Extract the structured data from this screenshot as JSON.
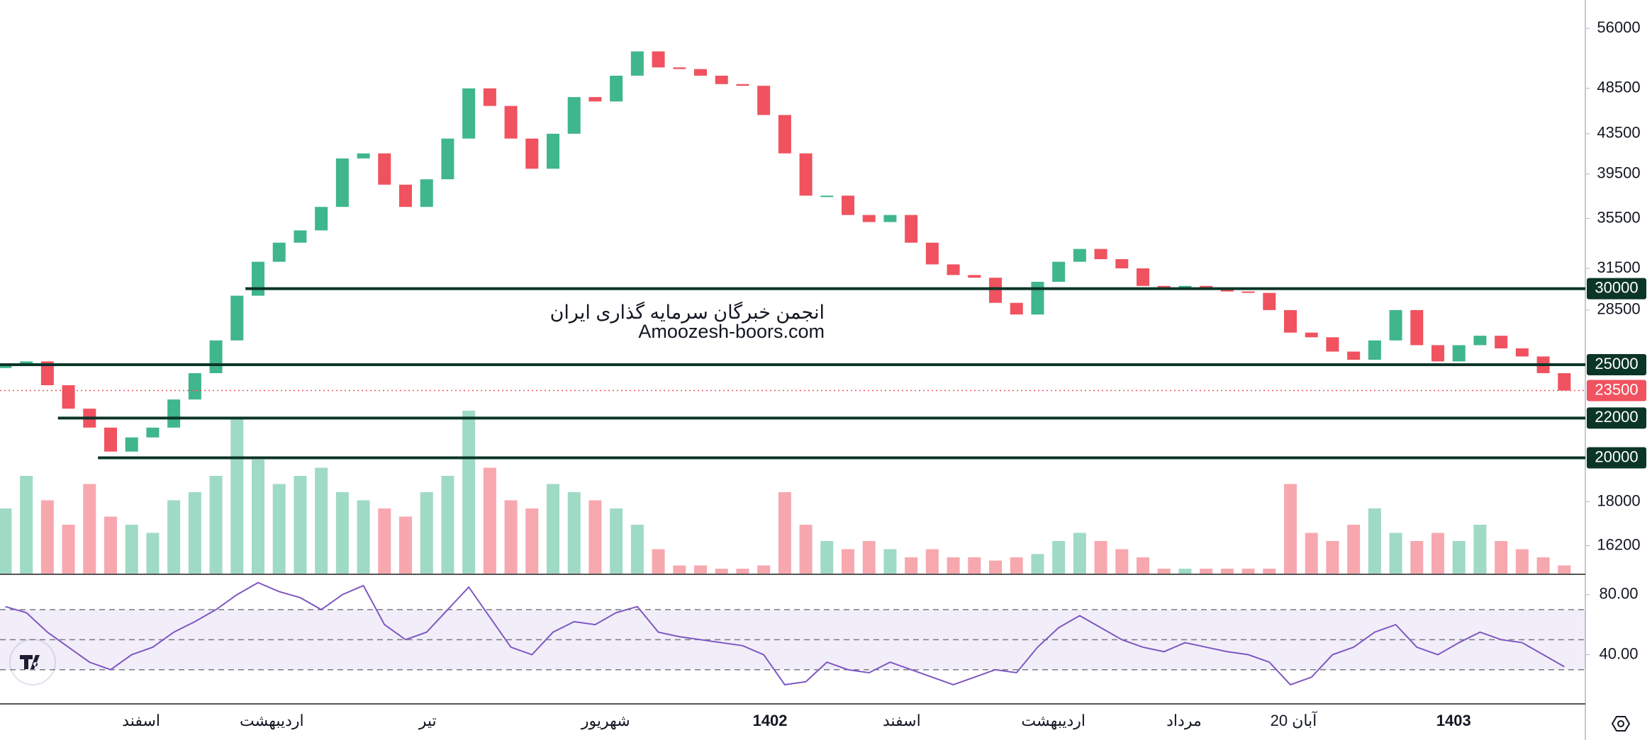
{
  "chart_data": {
    "type": "candlestick",
    "log": true,
    "ylim": [
      15150,
      59950
    ],
    "yticks": [
      56000,
      48500,
      43500,
      39500,
      35500,
      31500,
      28500,
      18000,
      16200
    ],
    "xlim": [
      -0.25,
      75.0
    ],
    "xticks": [
      {
        "value": 6.45,
        "label": "اسفند"
      },
      {
        "value": 12.65,
        "label": "اردیبهشت"
      },
      {
        "value": 20.05,
        "label": "تیر"
      },
      {
        "value": 28.5,
        "label": "شهریور"
      },
      {
        "value": 36.3,
        "label": "1402",
        "bold": true
      },
      {
        "value": 42.55,
        "label": "اسفند"
      },
      {
        "value": 49.75,
        "label": "اردیبهشت"
      },
      {
        "value": 55.95,
        "label": "مرداد"
      },
      {
        "value": 61.15,
        "label": "20 آبان"
      },
      {
        "value": 68.75,
        "label": "1403",
        "bold": true
      }
    ],
    "up_color": "#3fb68b",
    "down_color": "#f0525f",
    "open": [
      24800,
      25000,
      25200,
      23800,
      22500,
      21500,
      20300,
      21000,
      21500,
      23000,
      24500,
      26500,
      29500,
      32000,
      33500,
      34500,
      36500,
      41000,
      41500,
      38500,
      36500,
      39000,
      43000,
      48500,
      46500,
      43000,
      40000,
      43500,
      47500,
      47000,
      50000,
      53000,
      51000,
      50800,
      50000,
      49000,
      48800,
      45500,
      41500,
      37500,
      37500,
      35800,
      35200,
      35800,
      33500,
      31800,
      31000,
      30800,
      29000,
      28200,
      30500,
      32000,
      33000,
      32200,
      31500,
      30200,
      30000,
      30200,
      30000,
      29800,
      29700,
      28500,
      27000,
      26700,
      25800,
      25300,
      26500,
      28500,
      26200,
      25200,
      26200,
      26800,
      26000,
      25500,
      24500
    ],
    "close": [
      25000,
      25200,
      23800,
      22500,
      21500,
      20300,
      21000,
      21500,
      23000,
      24500,
      26500,
      29500,
      32000,
      33500,
      34500,
      36500,
      41000,
      41500,
      38500,
      36500,
      39000,
      43000,
      48500,
      46500,
      43000,
      40000,
      43500,
      47500,
      47000,
      50000,
      53000,
      51000,
      50800,
      50000,
      49000,
      48800,
      45500,
      41500,
      37500,
      37500,
      35800,
      35200,
      35800,
      33500,
      31800,
      31000,
      30800,
      29000,
      28200,
      30500,
      32000,
      33000,
      32200,
      31500,
      30200,
      30000,
      30200,
      30000,
      29800,
      29700,
      28500,
      27000,
      26700,
      25800,
      25300,
      26500,
      28500,
      26200,
      25200,
      26200,
      26800,
      26000,
      25500,
      24500,
      23500
    ],
    "volume": [
      40,
      60,
      45,
      30,
      55,
      35,
      30,
      25,
      45,
      50,
      60,
      95,
      70,
      55,
      60,
      65,
      50,
      45,
      40,
      35,
      50,
      60,
      100,
      65,
      45,
      40,
      55,
      50,
      45,
      40,
      30,
      15,
      5,
      5,
      3,
      3,
      5,
      50,
      30,
      20,
      15,
      20,
      15,
      10,
      15,
      10,
      10,
      8,
      10,
      12,
      20,
      25,
      20,
      15,
      10,
      3,
      3,
      3,
      3,
      3,
      3,
      55,
      25,
      20,
      30,
      40,
      25,
      20,
      25,
      20,
      30,
      20,
      15,
      10,
      5
    ],
    "levels": [
      {
        "value": 30000,
        "start": 11.4
      },
      {
        "value": 25000,
        "start": -0.25
      },
      {
        "value": 22000,
        "start": 2.5
      },
      {
        "value": 20000,
        "start": 4.4
      }
    ],
    "last_price": 23500,
    "watermark": [
      "انجمن خبرگان سرمایه گذاری ایران",
      "Amoozesh-boors.com"
    ],
    "rsi": {
      "color": "#7e57c2",
      "ylim": [
        7.7,
        92.6
      ],
      "yticks": [
        {
          "value": 80,
          "label": "80.00"
        },
        {
          "value": 40,
          "label": "40.00"
        }
      ],
      "band": [
        30,
        70
      ],
      "levels": [
        70,
        50,
        30
      ],
      "values": [
        72,
        68,
        55,
        45,
        35,
        30,
        40,
        45,
        55,
        62,
        70,
        80,
        88,
        82,
        78,
        70,
        80,
        86,
        60,
        50,
        55,
        70,
        85,
        65,
        45,
        40,
        55,
        62,
        60,
        68,
        72,
        55,
        52,
        50,
        48,
        46,
        40,
        20,
        22,
        35,
        30,
        28,
        35,
        30,
        25,
        20,
        25,
        30,
        28,
        45,
        58,
        66,
        58,
        50,
        45,
        42,
        48,
        45,
        42,
        40,
        35,
        20,
        25,
        40,
        45,
        55,
        60,
        45,
        40,
        48,
        55,
        50,
        48,
        40,
        32
      ]
    }
  }
}
